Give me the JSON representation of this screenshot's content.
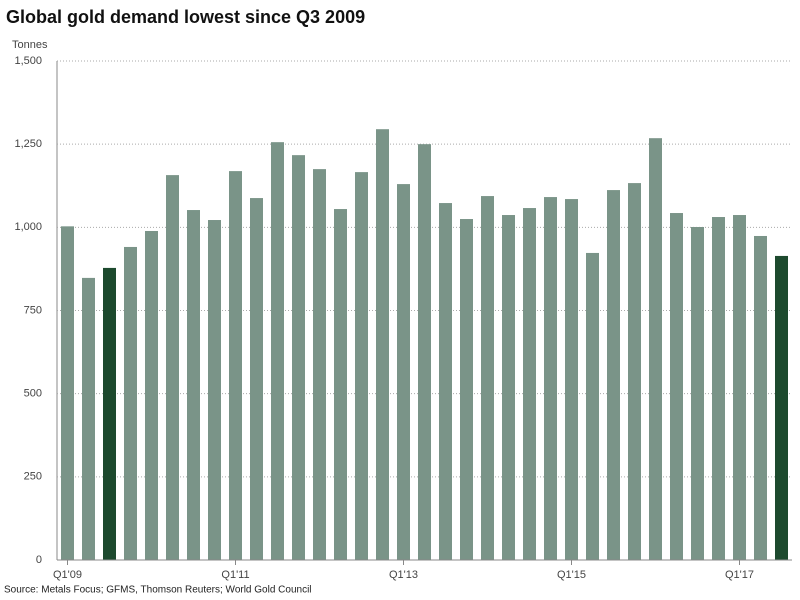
{
  "chart_data": {
    "type": "bar",
    "title": "Global gold demand lowest since Q3 2009",
    "y_label": "Tonnes",
    "source": "Source: Metals Focus; GFMS, Thomson Reuters; World Gold Council",
    "categories": [
      "Q1'09",
      null,
      null,
      null,
      null,
      null,
      null,
      null,
      "Q1'11",
      null,
      null,
      null,
      null,
      null,
      null,
      null,
      "Q1'13",
      null,
      null,
      null,
      null,
      null,
      null,
      null,
      "Q1'15",
      null,
      null,
      null,
      null,
      null,
      null,
      null,
      "Q1'17",
      null,
      null
    ],
    "values": [
      1003,
      848,
      878,
      941,
      989,
      1157,
      1052,
      1022,
      1169,
      1088,
      1256,
      1217,
      1175,
      1055,
      1166,
      1295,
      1130,
      1250,
      1073,
      1025,
      1094,
      1037,
      1058,
      1091,
      1085,
      923,
      1112,
      1133,
      1268,
      1043,
      1001,
      1031,
      1037,
      974,
      914
    ],
    "colors": [
      "#7a9488",
      "#7a9488",
      "#1d4a2e",
      "#7a9488",
      "#7a9488",
      "#7a9488",
      "#7a9488",
      "#7a9488",
      "#7a9488",
      "#7a9488",
      "#7a9488",
      "#7a9488",
      "#7a9488",
      "#7a9488",
      "#7a9488",
      "#7a9488",
      "#7a9488",
      "#7a9488",
      "#7a9488",
      "#7a9488",
      "#7a9488",
      "#7a9488",
      "#7a9488",
      "#7a9488",
      "#7a9488",
      "#7a9488",
      "#7a9488",
      "#7a9488",
      "#7a9488",
      "#7a9488",
      "#7a9488",
      "#7a9488",
      "#7a9488",
      "#7a9488",
      "#1d4a2e"
    ],
    "ylim": [
      0,
      1500
    ],
    "yticks": [
      0,
      250,
      500,
      750,
      {
        "value": 1000,
        "label": "1,000"
      },
      {
        "value": 1250,
        "label": "1,250"
      },
      {
        "value": 1500,
        "label": "1,500"
      }
    ],
    "grid": true
  }
}
